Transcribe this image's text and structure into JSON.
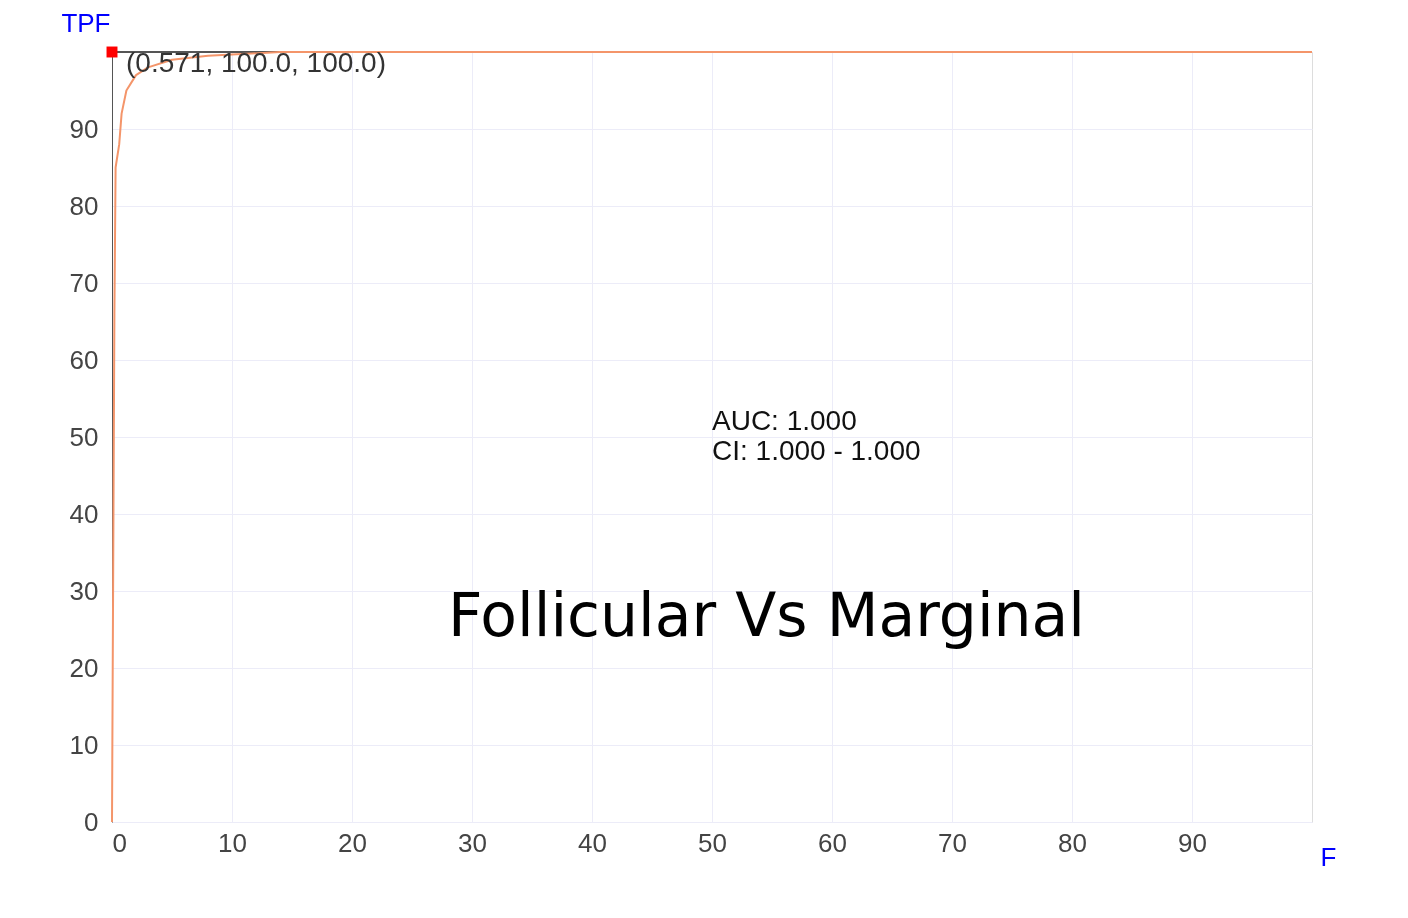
{
  "chart_data": {
    "type": "line",
    "title": "Follicular Vs Marginal",
    "xlabel": "F",
    "ylabel": "TPF",
    "xlim": [
      0,
      100
    ],
    "ylim": [
      0,
      100
    ],
    "xticks": [
      0,
      10,
      20,
      30,
      40,
      50,
      60,
      70,
      80,
      90
    ],
    "yticks": [
      0,
      10,
      20,
      30,
      40,
      50,
      60,
      70,
      80,
      90
    ],
    "grid": true,
    "series": [
      {
        "color": "#f4956a",
        "marker": "none",
        "x": [
          0,
          0.2,
          0.3,
          0.6,
          0.8,
          1.2,
          2,
          3,
          5,
          8,
          14,
          100
        ],
        "values": [
          0,
          66,
          85,
          88,
          92,
          95,
          97,
          98,
          99,
          99.5,
          100,
          100
        ]
      },
      {
        "type": "scatter",
        "color": "#ff0000",
        "marker": "square",
        "x": [
          0
        ],
        "values": [
          100
        ]
      }
    ],
    "annotations": [
      {
        "text": "(0.571, 100.0, 100.0)",
        "x": 0,
        "y": 100
      },
      "AUC: 1.000",
      "CI: 1.000 - 1.000"
    ]
  }
}
